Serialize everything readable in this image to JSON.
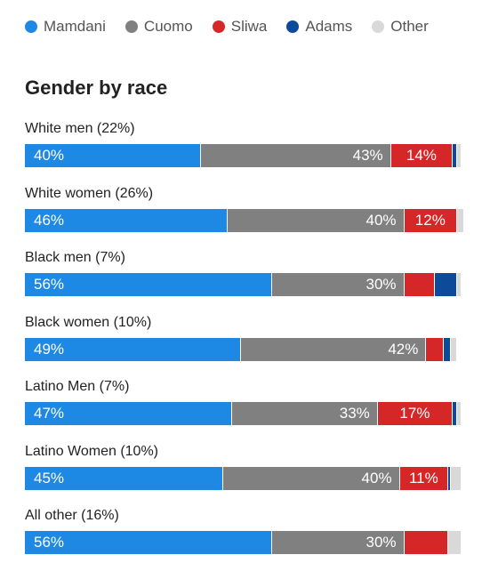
{
  "legend": [
    {
      "name": "Mamdani",
      "color": "#1e88e5"
    },
    {
      "name": "Cuomo",
      "color": "#808080"
    },
    {
      "name": "Sliwa",
      "color": "#d62728"
    },
    {
      "name": "Adams",
      "color": "#0d4a9a"
    },
    {
      "name": "Other",
      "color": "#d9d9d9"
    }
  ],
  "title": "Gender by race",
  "chart_data": {
    "type": "bar",
    "stacked": true,
    "orientation": "horizontal",
    "title": "Gender by race",
    "categories": [
      "White men (22%)",
      "White women (26%)",
      "Black men (7%)",
      "Black women (10%)",
      "Latino Men (7%)",
      "Latino Women (10%)",
      "All other (16%)"
    ],
    "series": [
      {
        "name": "Mamdani",
        "color": "#1e88e5",
        "values": [
          40,
          46,
          56,
          49,
          47,
          45,
          56
        ],
        "labels": [
          "40%",
          "46%",
          "56%",
          "49%",
          "47%",
          "45%",
          "56%"
        ]
      },
      {
        "name": "Cuomo",
        "color": "#808080",
        "values": [
          43,
          40,
          30,
          42,
          33,
          40,
          30
        ],
        "labels": [
          "43%",
          "40%",
          "30%",
          "42%",
          "33%",
          "40%",
          "30%"
        ]
      },
      {
        "name": "Sliwa",
        "color": "#d62728",
        "values": [
          14,
          12,
          7,
          4,
          17,
          11,
          10
        ],
        "labels": [
          "14%",
          "12%",
          "",
          "",
          "17%",
          "11%",
          ""
        ]
      },
      {
        "name": "Adams",
        "color": "#0d4a9a",
        "values": [
          1,
          0,
          5,
          1.5,
          1,
          0.5,
          0
        ],
        "labels": [
          "",
          "",
          "",
          "",
          "",
          "",
          ""
        ]
      },
      {
        "name": "Other",
        "color": "#d9d9d9",
        "values": [
          1,
          1.5,
          1,
          1.5,
          1,
          2.5,
          3
        ],
        "labels": [
          "",
          "",
          "",
          "",
          "",
          "",
          ""
        ]
      }
    ],
    "xlim": [
      0,
      100
    ]
  }
}
